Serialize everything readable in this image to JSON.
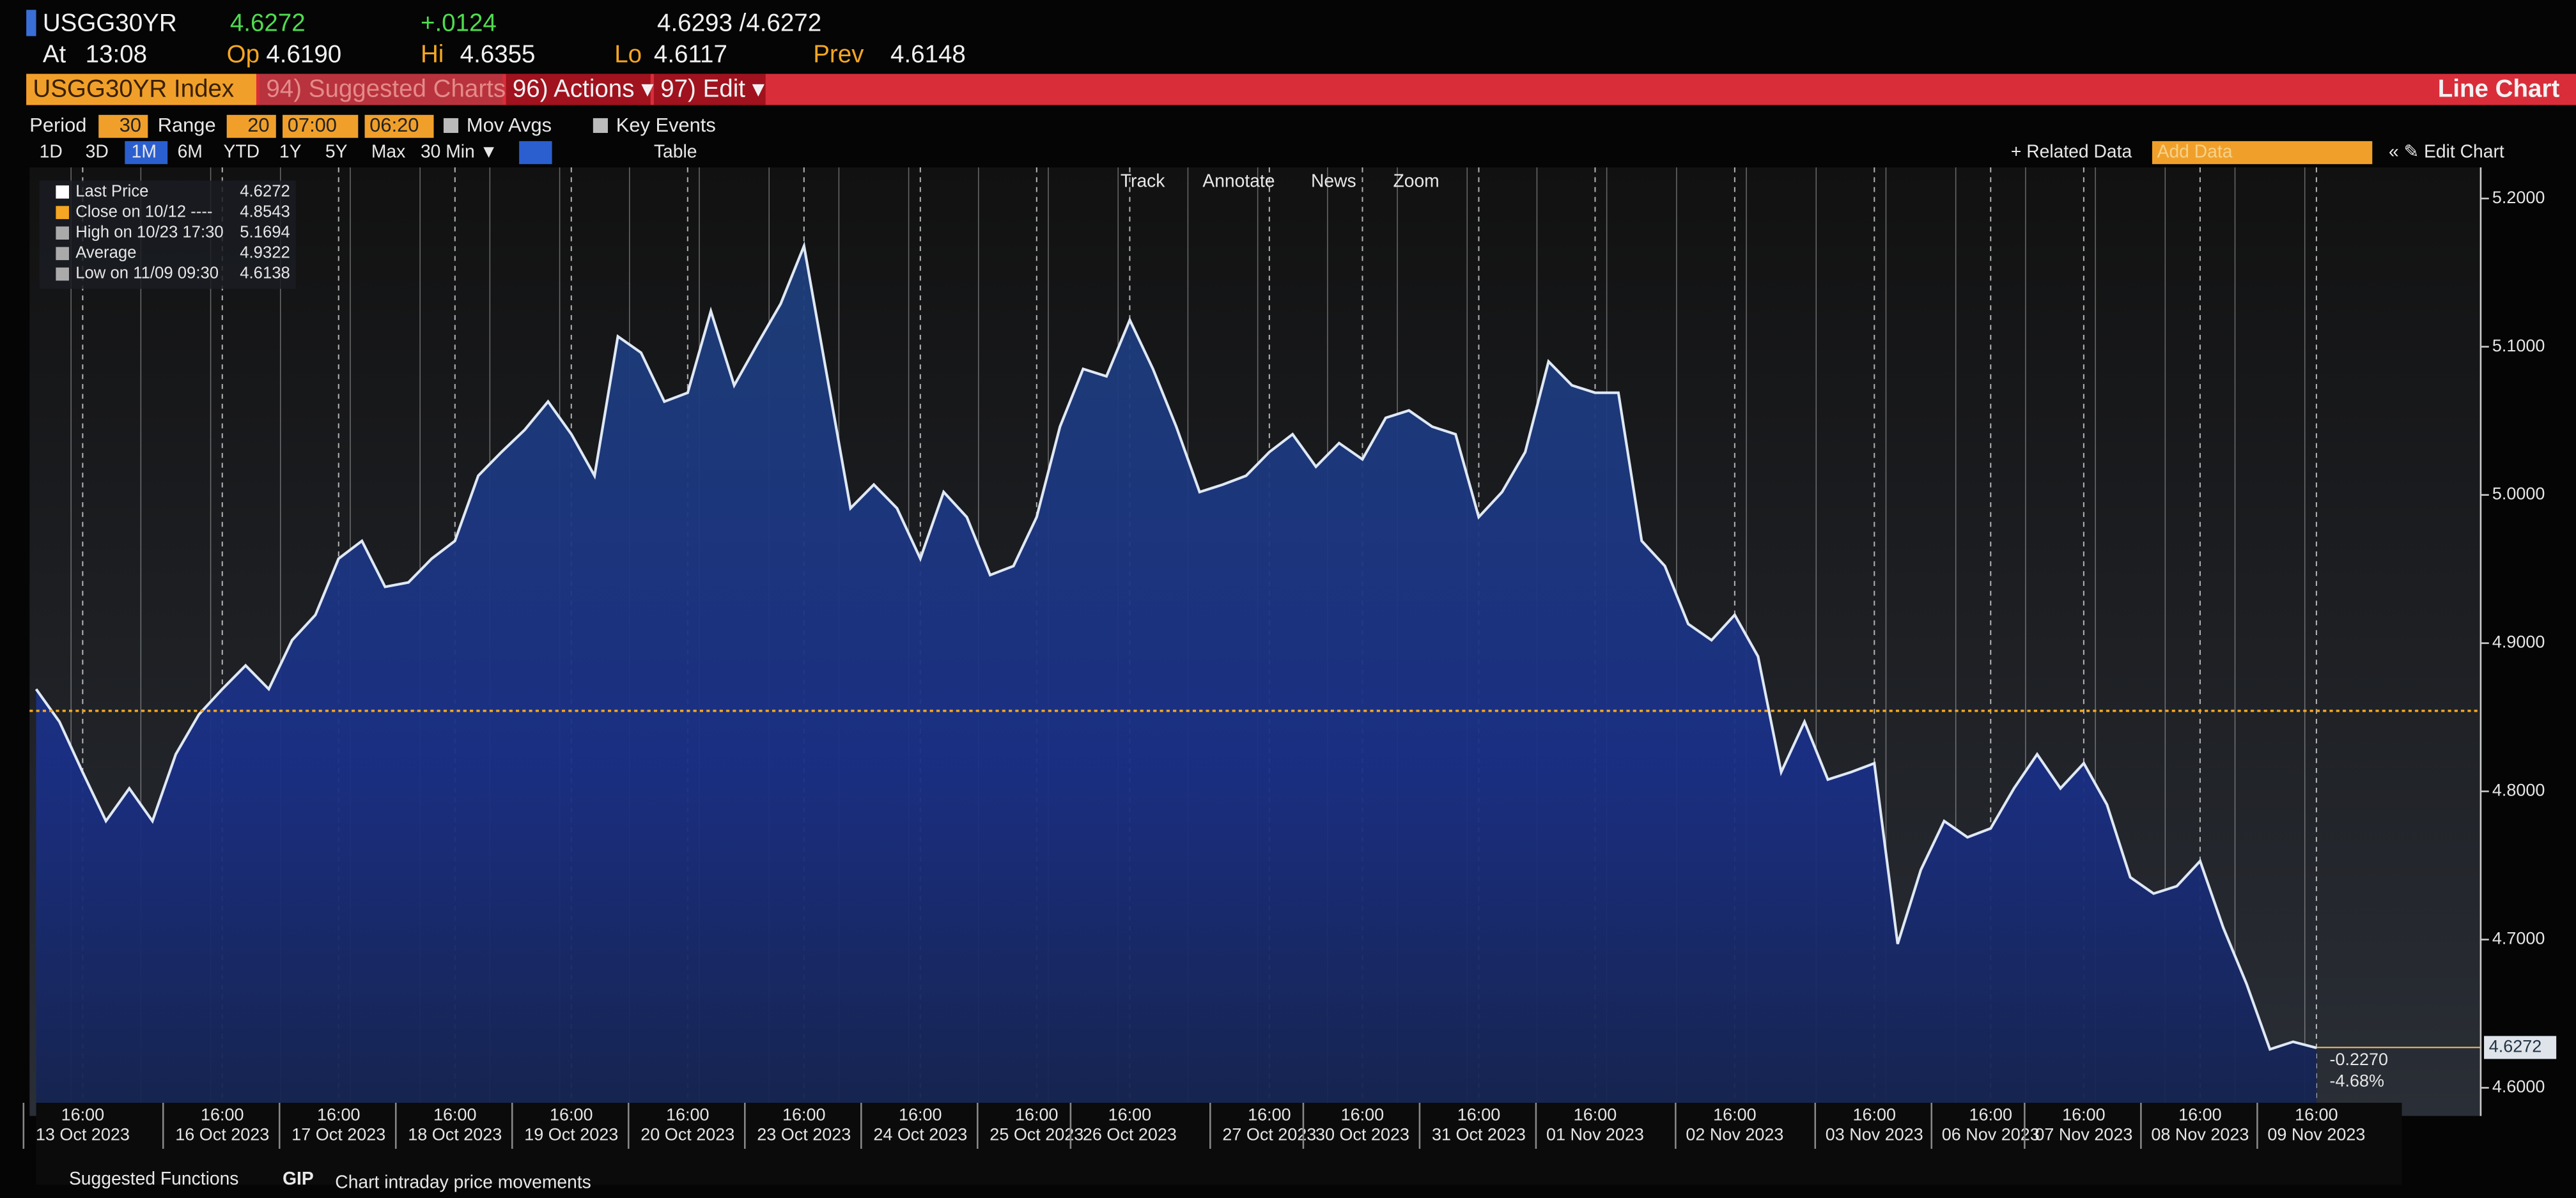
{
  "header": {
    "ticker": "USGG30YR",
    "last": "4.6272",
    "change": "+.0124",
    "bid_ask": "4.6293 /4.6272",
    "at_label": "At",
    "time": "13:08",
    "op_label": "Op",
    "open": "4.6190",
    "hi_label": "Hi",
    "high": "4.6355",
    "lo_label": "Lo",
    "low": "4.6117",
    "prev_label": "Prev",
    "prev": "4.6148"
  },
  "menu": {
    "security": "USGG30YR Index",
    "suggested": "94) Suggested Charts",
    "actions": "96) Actions ▾",
    "edit": "97) Edit ▾",
    "view": "Line Chart"
  },
  "settings": {
    "period_label": "Period",
    "period": "30",
    "range_label": "Range",
    "range": "20",
    "start": "07:00",
    "end": "06:20",
    "mov_avgs": "Mov Avgs",
    "key_events": "Key Events"
  },
  "toolbar": {
    "ranges": [
      "1D",
      "3D",
      "1M",
      "6M",
      "YTD",
      "1Y",
      "5Y",
      "Max"
    ],
    "interval": "30 Min ▼",
    "table": "Table",
    "related": "+ Related Data",
    "add_data": "Add Data",
    "edit_chart": "« ✎ Edit Chart"
  },
  "chart_tools": [
    "Track",
    "Annotate",
    "News",
    "Zoom"
  ],
  "footer": {
    "suggested": "Suggested Functions",
    "code": "GIP",
    "description": "Chart intraday price movements"
  },
  "chart_data": {
    "type": "line",
    "legend": [
      {
        "label": "Last Price",
        "value": "4.6272"
      },
      {
        "label": "Close on 10/12 ----",
        "value": "4.8543"
      },
      {
        "label": "High on 10/23 17:30",
        "value": "5.1694"
      },
      {
        "label": "Average",
        "value": "4.9322"
      },
      {
        "label": "Low on 11/09 09:30",
        "value": "4.6138"
      }
    ],
    "change_tag": "-0.2270",
    "pct_tag": "-4.68%",
    "x_tick_time": "16:00",
    "categories": [
      null,
      null,
      "13 Oct 2023",
      null,
      null,
      null,
      null,
      null,
      "16 Oct 2023",
      null,
      null,
      null,
      null,
      "17 Oct 2023",
      null,
      null,
      null,
      null,
      "18 Oct 2023",
      null,
      null,
      null,
      null,
      "19 Oct 2023",
      null,
      null,
      null,
      null,
      "20 Oct 2023",
      null,
      null,
      null,
      null,
      "23 Oct 2023",
      null,
      null,
      null,
      null,
      "24 Oct 2023",
      null,
      null,
      null,
      null,
      "25 Oct 2023",
      null,
      null,
      null,
      "26 Oct 2023",
      null,
      null,
      null,
      null,
      null,
      "27 Oct 2023",
      null,
      null,
      null,
      "30 Oct 2023",
      null,
      null,
      null,
      null,
      "31 Oct 2023",
      null,
      null,
      null,
      null,
      "01 Nov 2023",
      null,
      null,
      null,
      null,
      null,
      "02 Nov 2023",
      null,
      null,
      null,
      null,
      null,
      "03 Nov 2023",
      null,
      null,
      null,
      null,
      "06 Nov 2023",
      null,
      null,
      null,
      "07 Nov 2023",
      null,
      null,
      null,
      null,
      "08 Nov 2023",
      null,
      null,
      null,
      null,
      "09 Nov 2023"
    ],
    "series": [
      {
        "name": "Last Price",
        "color": "#dfe8f5",
        "values": [
          4.869,
          4.847,
          4.813,
          4.78,
          4.802,
          4.78,
          4.825,
          4.852,
          4.869,
          4.885,
          4.869,
          4.902,
          4.919,
          4.957,
          4.969,
          4.938,
          4.941,
          4.957,
          4.969,
          5.013,
          5.029,
          5.044,
          5.063,
          5.041,
          5.013,
          5.107,
          5.096,
          5.063,
          5.069,
          5.124,
          5.074,
          5.102,
          5.129,
          5.168,
          5.079,
          4.991,
          5.007,
          4.991,
          4.957,
          5.002,
          4.985,
          4.946,
          4.952,
          4.985,
          5.046,
          5.085,
          5.08,
          5.118,
          5.085,
          5.046,
          5.002,
          5.007,
          5.013,
          5.029,
          5.041,
          5.019,
          5.035,
          5.024,
          5.052,
          5.057,
          5.046,
          5.041,
          4.985,
          5.002,
          5.029,
          5.09,
          5.074,
          5.069,
          5.069,
          4.969,
          4.952,
          4.913,
          4.902,
          4.919,
          4.891,
          4.813,
          4.847,
          4.808,
          4.813,
          4.819,
          4.697,
          4.747,
          4.78,
          4.769,
          4.775,
          4.802,
          4.825,
          4.802,
          4.819,
          4.791,
          4.742,
          4.731,
          4.736,
          4.753,
          4.708,
          4.67,
          4.626,
          4.631,
          4.627
        ]
      }
    ],
    "ylim": [
      4.581,
      5.221
    ],
    "yticks": [
      {
        "value": 4.6,
        "label": "4.6000"
      },
      {
        "value": 4.7,
        "label": "4.7000"
      },
      {
        "value": 4.8,
        "label": "4.8000"
      },
      {
        "value": 4.9,
        "label": "4.9000"
      },
      {
        "value": 5.0,
        "label": "5.0000"
      },
      {
        "value": 5.1,
        "label": "5.1000"
      },
      {
        "value": 5.2,
        "label": "5.2000"
      }
    ],
    "grid": true
  }
}
